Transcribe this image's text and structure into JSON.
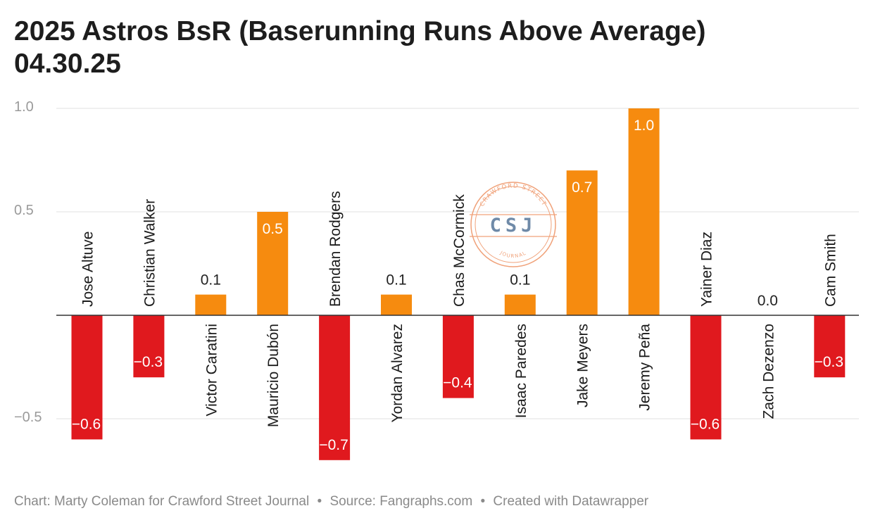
{
  "title_line1": "2025 Astros BsR (Baserunning Runs Above Average)",
  "title_line2": "04.30.25",
  "footer": {
    "chart_credit": "Chart: Marty Coleman for Crawford Street Journal",
    "source": "Source: Fangraphs.com",
    "tool": "Created with Datawrapper",
    "separator": "•"
  },
  "watermark": {
    "top_text": "CRAWFORD STREET",
    "center_text": "CSJ",
    "bottom_text": "JOURNAL"
  },
  "colors": {
    "positive": "#f68b0f",
    "negative": "#e0191e",
    "grid": "#e0e0e0",
    "baseline": "#333333",
    "tick": "#9a9a9a",
    "watermark": "#f0a27a"
  },
  "chart_data": {
    "type": "bar",
    "title": "2025 Astros BsR (Baserunning Runs Above Average)",
    "subtitle": "04.30.25",
    "xlabel": "",
    "ylabel": "",
    "ylim": [
      -0.7,
      1.0
    ],
    "yticks": [
      {
        "value": -0.5,
        "label": "−0.5"
      },
      {
        "value": 0.5,
        "label": "0.5"
      },
      {
        "value": 1.0,
        "label": "1.0"
      }
    ],
    "grid": true,
    "legend": "none",
    "categories": [
      "Jose Altuve",
      "Christian Walker",
      "Victor Caratini",
      "Mauricio Dubón",
      "Brendan Rodgers",
      "Yordan Alvarez",
      "Chas McCormick",
      "Isaac Paredes",
      "Jake Meyers",
      "Jeremy Peña",
      "Yainer Diaz",
      "Zach Dezenzo",
      "Cam Smith"
    ],
    "values": [
      -0.6,
      -0.3,
      0.1,
      0.5,
      -0.7,
      0.1,
      -0.4,
      0.1,
      0.7,
      1.0,
      -0.6,
      0.0,
      -0.3
    ],
    "value_labels": [
      "−0.6",
      "−0.3",
      "0.1",
      "0.5",
      "−0.7",
      "0.1",
      "−0.4",
      "0.1",
      "0.7",
      "1.0",
      "−0.6",
      "0.0",
      "−0.3"
    ]
  }
}
